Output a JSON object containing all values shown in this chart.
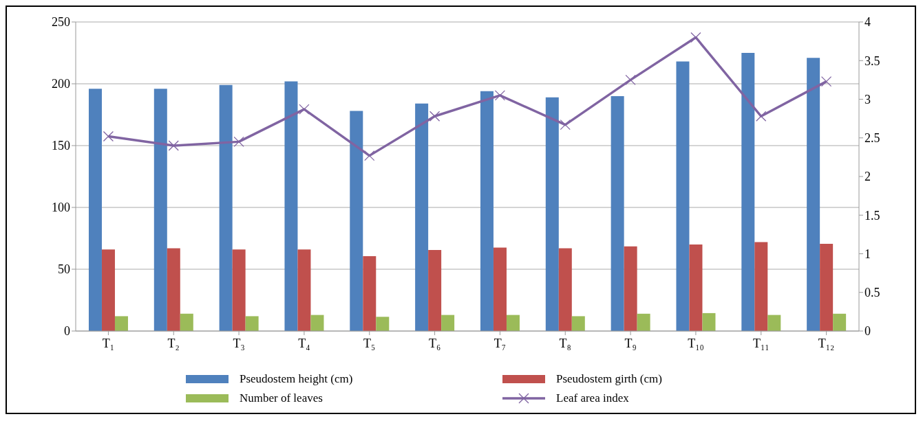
{
  "chart_data": {
    "type": "bar",
    "categories": [
      "T₁",
      "T₂",
      "T₃",
      "T₄",
      "T₅",
      "T₆",
      "T₇",
      "T₈",
      "T₉",
      "T₁₀",
      "T₁₁",
      "T₁₂"
    ],
    "series": [
      {
        "name": "Pseudostem height (cm)",
        "color": "#4f81bd",
        "values": [
          196,
          196,
          199,
          202,
          178,
          184,
          194,
          189,
          190,
          218,
          225,
          221
        ]
      },
      {
        "name": "Pseudostem girth (cm)",
        "color": "#c0504d",
        "values": [
          66,
          67,
          66,
          66,
          60.5,
          65.5,
          67.5,
          67,
          68.5,
          70,
          72,
          70.5
        ]
      },
      {
        "name": "Number of leaves",
        "color": "#9bbb59",
        "values": [
          12,
          14,
          12,
          13,
          11.5,
          13,
          13,
          12,
          14,
          14.5,
          13,
          14
        ]
      },
      {
        "name": "Leaf area index",
        "type": "line",
        "axis": "y2",
        "color": "#8064a2",
        "marker": "cross",
        "values": [
          2.52,
          2.4,
          2.45,
          2.87,
          2.27,
          2.78,
          3.05,
          2.67,
          3.25,
          3.8,
          2.78,
          3.23
        ]
      }
    ],
    "ylim": [
      0,
      250
    ],
    "yticks": [
      0,
      50,
      100,
      150,
      200,
      250
    ],
    "y2lim": [
      0,
      4
    ],
    "y2ticks": [
      0,
      0.5,
      1,
      1.5,
      2,
      2.5,
      3,
      3.5,
      4
    ],
    "grid": "y",
    "legend": "bottom"
  }
}
